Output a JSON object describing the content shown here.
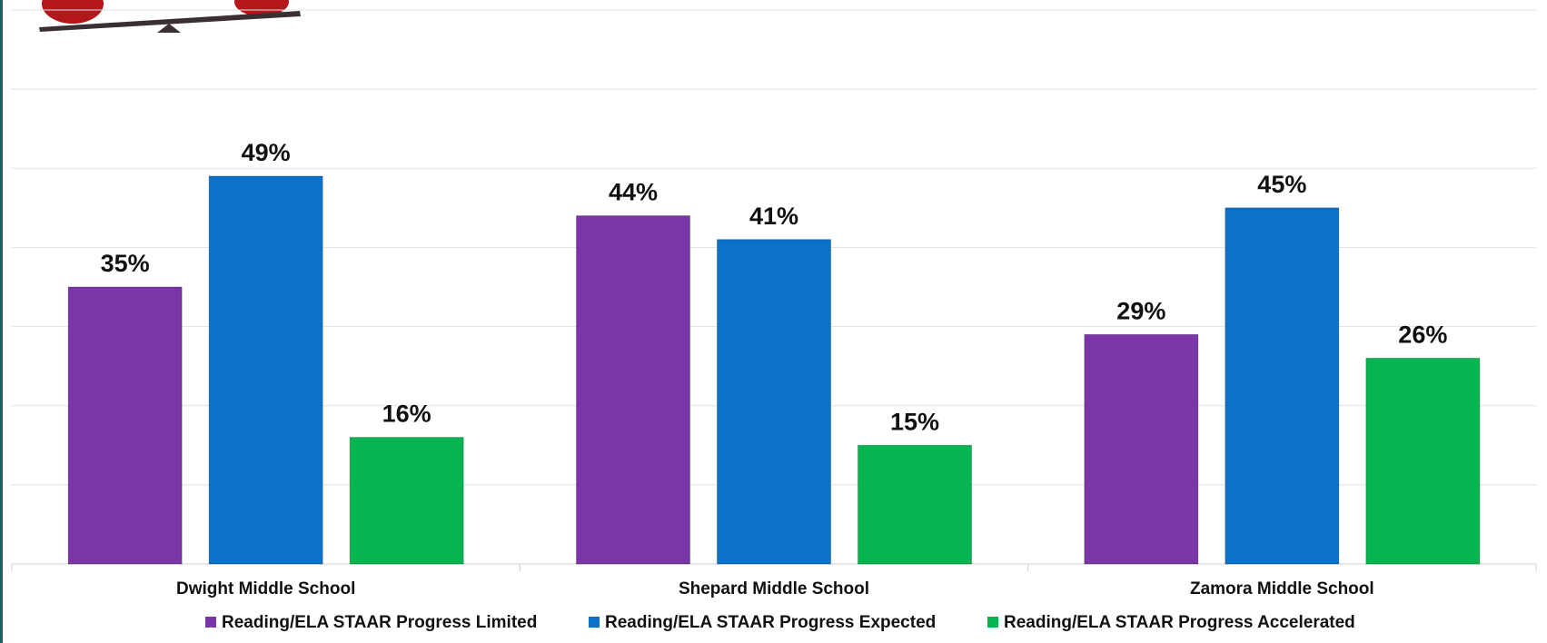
{
  "chart_data": {
    "type": "bar",
    "categories": [
      "Dwight Middle School",
      "Shepard Middle School",
      "Zamora Middle School"
    ],
    "series": [
      {
        "name": "Reading/ELA STAAR Progress Limited",
        "color": "#7a35a8",
        "values": [
          35,
          44,
          29
        ],
        "value_labels": [
          "35%",
          "44%",
          "29%"
        ]
      },
      {
        "name": "Reading/ELA STAAR Progress Expected",
        "color": "#0a72c8",
        "values": [
          49,
          41,
          45
        ],
        "value_labels": [
          "49%",
          "41%",
          "45%"
        ]
      },
      {
        "name": "Reading/ELA STAAR Progress Accelerated",
        "color": "#06b54f",
        "values": [
          16,
          15,
          26
        ],
        "value_labels": [
          "16%",
          "15%",
          "26%"
        ]
      }
    ],
    "ylim": [
      0,
      70
    ],
    "yticks": [
      0,
      10,
      20,
      30,
      40,
      50,
      60,
      70
    ],
    "grid": true
  }
}
